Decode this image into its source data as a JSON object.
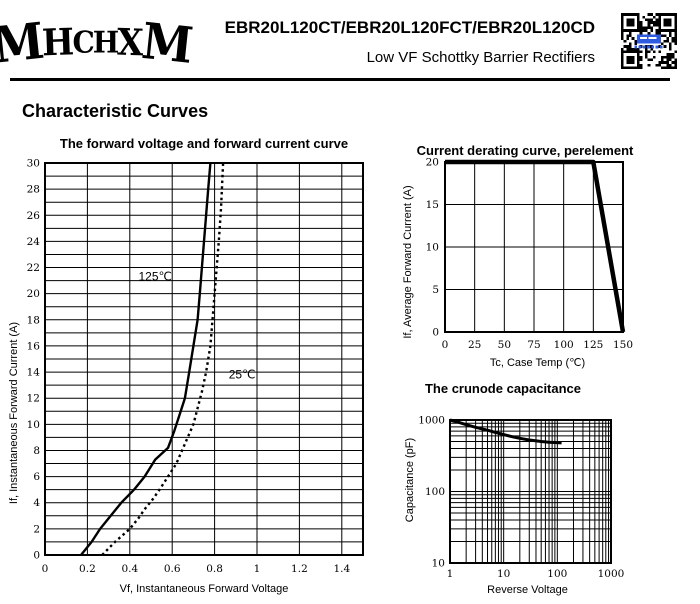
{
  "header": {
    "logo_text": "MHCHXM",
    "title": "EBR20L120CT/EBR20L120FCT/EBR20L120CD",
    "subtitle": "Low VF Schottky Barrier Rectifiers"
  },
  "section_heading": "Characteristic Curves",
  "colors": {
    "ink": "#000000",
    "qr_blue": "#2e5be0",
    "background": "#ffffff"
  },
  "chart_data": [
    {
      "id": "chart-forward",
      "type": "line",
      "title": "The forward voltage and forward current curve",
      "xlabel": "Vf, Instantaneous Forward Voltage",
      "ylabel": "If, Instantaneous Forward Current (A)",
      "xlim": [
        0,
        1.5
      ],
      "ylim": [
        0,
        30
      ],
      "log_x": false,
      "log_y": false,
      "grid": "on",
      "x_grid_step": 0.2,
      "y_grid_step": 1,
      "x_ticks": [
        0,
        0.2,
        0.4,
        0.6,
        0.8,
        1.0,
        1.2,
        1.4
      ],
      "x_tick_labels": [
        "0",
        "0.2",
        "0.4",
        "0.6",
        "0.8",
        "1",
        "1.2",
        "1.4"
      ],
      "y_ticks": [
        0,
        2,
        4,
        6,
        8,
        10,
        12,
        14,
        16,
        18,
        20,
        22,
        24,
        26,
        28,
        30
      ],
      "y_tick_labels": [
        "0",
        "2",
        "4",
        "6",
        "8",
        "10",
        "12",
        "14",
        "16",
        "18",
        "20",
        "22",
        "24",
        "26",
        "28",
        "30"
      ],
      "series": [
        {
          "name": "125℃",
          "style": "solid",
          "width": 2.4,
          "points": [
            [
              0.17,
              0
            ],
            [
              0.22,
              1
            ],
            [
              0.26,
              2
            ],
            [
              0.31,
              3
            ],
            [
              0.36,
              4
            ],
            [
              0.42,
              5
            ],
            [
              0.47,
              6
            ],
            [
              0.52,
              7.3
            ],
            [
              0.58,
              8.2
            ],
            [
              0.61,
              9.5
            ],
            [
              0.63,
              10.5
            ],
            [
              0.66,
              12
            ],
            [
              0.68,
              14
            ],
            [
              0.7,
              16
            ],
            [
              0.72,
              18
            ],
            [
              0.73,
              20
            ],
            [
              0.74,
              22
            ],
            [
              0.75,
              24
            ],
            [
              0.76,
              26
            ],
            [
              0.77,
              28
            ],
            [
              0.78,
              30
            ]
          ]
        },
        {
          "name": "25℃",
          "style": "dotted",
          "width": 2.4,
          "points": [
            [
              0.27,
              0
            ],
            [
              0.33,
              1
            ],
            [
              0.4,
              2
            ],
            [
              0.44,
              2.8
            ],
            [
              0.47,
              3.5
            ],
            [
              0.51,
              4.3
            ],
            [
              0.54,
              5
            ],
            [
              0.58,
              6
            ],
            [
              0.62,
              7
            ],
            [
              0.66,
              8.5
            ],
            [
              0.7,
              10
            ],
            [
              0.74,
              12.5
            ],
            [
              0.76,
              14
            ],
            [
              0.78,
              16
            ],
            [
              0.79,
              18
            ],
            [
              0.8,
              20
            ],
            [
              0.81,
              22
            ],
            [
              0.82,
              24
            ],
            [
              0.83,
              26.5
            ],
            [
              0.84,
              30
            ]
          ]
        }
      ],
      "annotations": [
        {
          "text": "125℃",
          "x": 0.52,
          "y": 21.3
        },
        {
          "text": "25℃",
          "x": 0.93,
          "y": 13.8
        }
      ]
    },
    {
      "id": "chart-derating",
      "type": "line",
      "title": "Current derating curve, perelement",
      "xlabel": "Tc, Case Temp (℃)",
      "ylabel": "If, Average Forward Current (A)",
      "xlim": [
        0,
        150
      ],
      "ylim": [
        0,
        20
      ],
      "log_x": false,
      "log_y": false,
      "grid": "on",
      "x_grid_step": 25,
      "y_grid_step": 5,
      "x_ticks": [
        0,
        25,
        50,
        75,
        100,
        125,
        150
      ],
      "x_tick_labels": [
        "0",
        "25",
        "50",
        "75",
        "100",
        "125",
        "150"
      ],
      "y_ticks": [
        0,
        5,
        10,
        15,
        20
      ],
      "y_tick_labels": [
        "0",
        "5",
        "10",
        "15",
        "20"
      ],
      "series": [
        {
          "name": "derating",
          "style": "solid",
          "width": 4.5,
          "points": [
            [
              0,
              20
            ],
            [
              125,
              20
            ],
            [
              150,
              0
            ]
          ]
        }
      ],
      "annotations": []
    },
    {
      "id": "chart-capacitance",
      "type": "line",
      "title": "The crunode capacitance",
      "xlabel": "Reverse Voltage",
      "ylabel": "Capacitance (pF)",
      "xlim": [
        1,
        1000
      ],
      "ylim": [
        10,
        1000
      ],
      "log_x": true,
      "log_y": true,
      "grid": "on",
      "x_ticks": [
        1,
        10,
        100,
        1000
      ],
      "x_tick_labels": [
        "1",
        "10",
        "100",
        "1000"
      ],
      "y_ticks": [
        10,
        100,
        1000
      ],
      "y_tick_labels": [
        "10",
        "100",
        "1000"
      ],
      "series": [
        {
          "name": "capacitance",
          "style": "solid",
          "width": 3,
          "points": [
            [
              1,
              1000
            ],
            [
              1.5,
              920
            ],
            [
              2,
              860
            ],
            [
              3,
              790
            ],
            [
              4,
              750
            ],
            [
              5,
              720
            ],
            [
              7,
              670
            ],
            [
              10,
              625
            ],
            [
              15,
              580
            ],
            [
              20,
              555
            ],
            [
              30,
              525
            ],
            [
              50,
              500
            ],
            [
              70,
              490
            ],
            [
              100,
              483
            ],
            [
              120,
              478
            ]
          ]
        }
      ],
      "annotations": []
    }
  ]
}
